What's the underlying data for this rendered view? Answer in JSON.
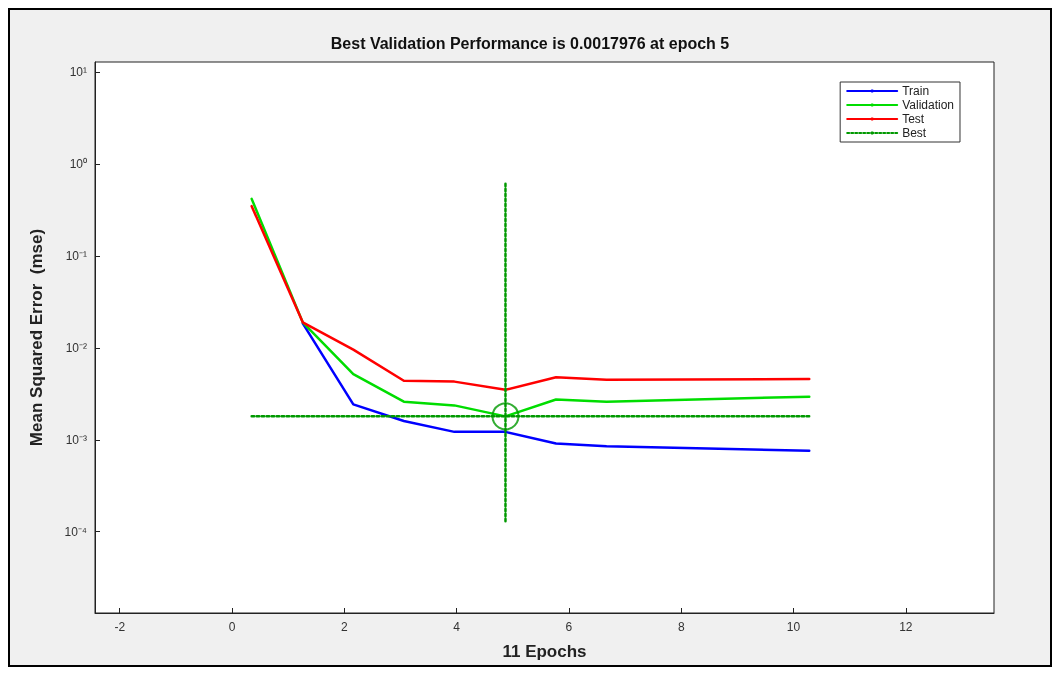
{
  "chart_data": {
    "type": "line",
    "title": "Best Validation Performance is 0.0017976 at epoch 5",
    "xlabel": "11 Epochs",
    "ylabel": "Mean Squared Error  (mse)",
    "log": "y",
    "grid": false,
    "legend": "top right",
    "line_style": "solid",
    "marker": "none",
    "xlim": [
      -2.44,
      13.57
    ],
    "xticks": [
      -2,
      0,
      2,
      4,
      6,
      8,
      10,
      12
    ],
    "ylim": [
      1.3e-05,
      13
    ],
    "yticks": [
      {
        "value": 10,
        "label": "10¹"
      },
      {
        "value": 1,
        "label": "10⁰"
      },
      {
        "value": 0.1,
        "label": "10⁻¹"
      },
      {
        "value": 0.01,
        "label": "10⁻²"
      },
      {
        "value": 0.001,
        "label": "10⁻³"
      },
      {
        "value": 0.0001,
        "label": "10⁻⁴"
      }
    ],
    "series": [
      {
        "name": "Train",
        "color": "#0000ff",
        "x": [
          1.26,
          2.16,
          3.06,
          3.96,
          4.87,
          5.77,
          6.67,
          10.28
        ],
        "values": [
          0.0185,
          0.00243,
          0.0016,
          0.00122,
          0.00122,
          0.00091,
          0.00085,
          0.00076
        ]
      },
      {
        "name": "Validation",
        "color": "#00dd00",
        "x": [
          0.35,
          1.26,
          2.16,
          3.06,
          3.96,
          4.87,
          5.77,
          6.67,
          10.28
        ],
        "values": [
          0.42,
          0.019,
          0.0052,
          0.0026,
          0.00237,
          0.0018,
          0.00275,
          0.0026,
          0.00295
        ]
      },
      {
        "name": "Test",
        "color": "#ff0000",
        "x": [
          0.35,
          1.26,
          2.16,
          3.06,
          3.96,
          4.87,
          5.77,
          6.67,
          10.28
        ],
        "values": [
          0.35,
          0.019,
          0.0096,
          0.0044,
          0.0043,
          0.0035,
          0.0048,
          0.0045,
          0.0046
        ]
      },
      {
        "name": "Best",
        "color": "#009900",
        "line_style": "dotted",
        "x": [
          0.35,
          10.28,
          null,
          4.87,
          4.87
        ],
        "values": [
          0.0018,
          0.0018,
          null,
          0.00013,
          0.65
        ]
      },
      {
        "type": "scatter",
        "color": "#009900",
        "marker": "circle",
        "x": [
          4.87
        ],
        "values": [
          0.0018
        ]
      }
    ]
  }
}
